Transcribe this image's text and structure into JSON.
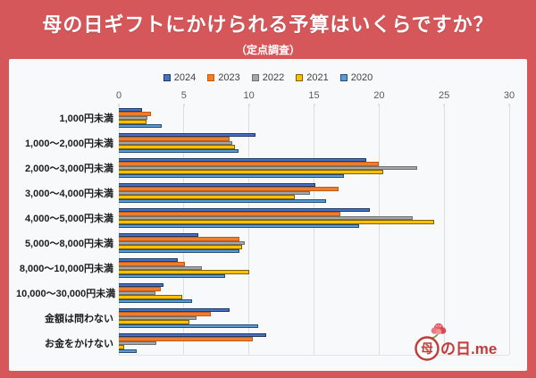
{
  "header": {
    "title": "母の日ギフトにかけられる予算はいくらですか？",
    "subtitle": "（定点調査）"
  },
  "colors": {
    "frame_red": "#d5575a",
    "panel_background": "#f8f9fb",
    "gridline": "#dcdee2",
    "logo_red": "#c23b3b"
  },
  "chart_data": {
    "type": "bar",
    "orientation": "horizontal",
    "title": "母の日ギフトにかけられる予算はいくらですか？（定点調査）",
    "xlabel": "",
    "ylabel": "",
    "xlim": [
      0,
      30
    ],
    "xticks": [
      0,
      5,
      10,
      15,
      20,
      25,
      30
    ],
    "grid": true,
    "legend_position": "top",
    "categories": [
      "1,000円未満",
      "1,000～2,000円未満",
      "2,000～3,000円未満",
      "3,000～4,000円未満",
      "4,000～5,000円未満",
      "5,000～8,000円未満",
      "8,000～10,000円未満",
      "10,000～30,000円未満",
      "金額は問わない",
      "お金をかけない"
    ],
    "series": [
      {
        "name": "2024",
        "color": "#4472c4",
        "border_color": "#1f3864",
        "values": [
          1.8,
          10.5,
          19.0,
          15.1,
          19.3,
          6.1,
          4.5,
          3.4,
          8.5,
          11.3
        ]
      },
      {
        "name": "2023",
        "color": "#ed7d31",
        "border_color": "#c55a11",
        "values": [
          2.5,
          8.5,
          20.0,
          16.9,
          17.0,
          9.3,
          5.1,
          3.2,
          7.1,
          10.3
        ]
      },
      {
        "name": "2022",
        "color": "#a6a6a6",
        "border_color": "#6f6f6f",
        "values": [
          2.2,
          8.7,
          22.9,
          14.7,
          22.6,
          9.7,
          6.4,
          2.8,
          6.0,
          2.9
        ]
      },
      {
        "name": "2021",
        "color": "#ffc000",
        "border_color": "#7f6000",
        "values": [
          2.1,
          8.9,
          20.3,
          13.5,
          24.2,
          9.5,
          10.0,
          4.9,
          5.4,
          0.4
        ]
      },
      {
        "name": "2020",
        "color": "#5b9bd5",
        "border_color": "#1f4e79",
        "values": [
          3.3,
          9.2,
          17.3,
          15.9,
          18.5,
          9.3,
          8.2,
          5.6,
          10.7,
          1.4
        ]
      }
    ]
  },
  "logo": {
    "circle_char": "母",
    "suffix": "の日.me"
  }
}
